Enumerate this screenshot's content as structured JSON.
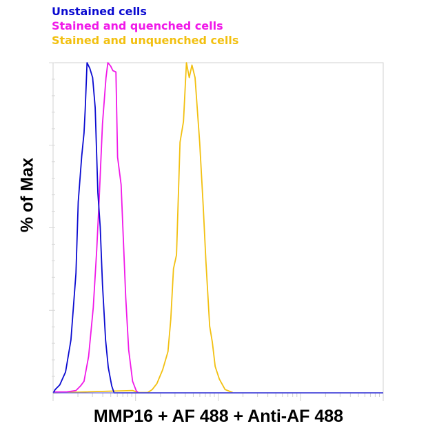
{
  "chart_data": {
    "type": "line",
    "title": "",
    "xlabel": "MMP16 + AF 488 + Anti-AF 488",
    "ylabel": "% of Max",
    "x_scale": "log",
    "x_units": "decades (unlabeled)",
    "xlim": [
      0,
      4
    ],
    "ylim": [
      0,
      100
    ],
    "grid": false,
    "legend_position": "top-left, above plot",
    "series": [
      {
        "name": "Unstained cells",
        "color": "#0a0ad0",
        "x": [
          0.003,
          0.025,
          0.081,
          0.151,
          0.216,
          0.277,
          0.305,
          0.347,
          0.375,
          0.389,
          0.412,
          0.445,
          0.479,
          0.51,
          0.543,
          0.571,
          0.599,
          0.636,
          0.669,
          0.711,
          0.739,
          4.0
        ],
        "y": [
          0,
          1.0,
          2.4,
          6.3,
          16.0,
          36.2,
          57.8,
          71.8,
          78.7,
          85.7,
          100,
          98.3,
          95.5,
          86.4,
          60.6,
          50.2,
          32.8,
          16.0,
          7.7,
          2.1,
          0,
          0
        ]
      },
      {
        "name": "Stained and quenched cells",
        "color": "#f018e8",
        "x": [
          0.003,
          0.165,
          0.277,
          0.333,
          0.375,
          0.431,
          0.487,
          0.529,
          0.557,
          0.599,
          0.641,
          0.664,
          0.697,
          0.725,
          0.762,
          0.782,
          0.824,
          0.852,
          0.88,
          0.916,
          0.964,
          1.006,
          1.034
        ],
        "y": [
          0.3,
          0.3,
          0.7,
          2.1,
          3.5,
          11.1,
          25.8,
          43.2,
          57.8,
          81.5,
          95.5,
          100,
          99.0,
          97.6,
          97.2,
          71.4,
          63.1,
          46.3,
          29.0,
          13.0,
          3.5,
          0.7,
          0
        ]
      },
      {
        "name": "Stained and unquenched cells",
        "color": "#f2c010",
        "x": [
          0.0,
          0.964,
          1.034,
          1.146,
          1.202,
          1.258,
          1.328,
          1.392,
          1.426,
          1.459,
          1.496,
          1.538,
          1.58,
          1.616,
          1.65,
          1.683,
          1.72,
          1.776,
          1.818,
          1.852,
          1.897,
          1.93,
          1.964,
          2.014,
          2.084,
          2.176
        ],
        "y": [
          0,
          0.7,
          0.1,
          0.1,
          1.0,
          2.8,
          7.0,
          12.5,
          22.3,
          37.6,
          41.8,
          75.9,
          82.2,
          100,
          95.5,
          99.3,
          95.5,
          75.9,
          57.1,
          39.7,
          20.2,
          15.3,
          8.0,
          4.2,
          1.0,
          0.1
        ]
      }
    ]
  }
}
